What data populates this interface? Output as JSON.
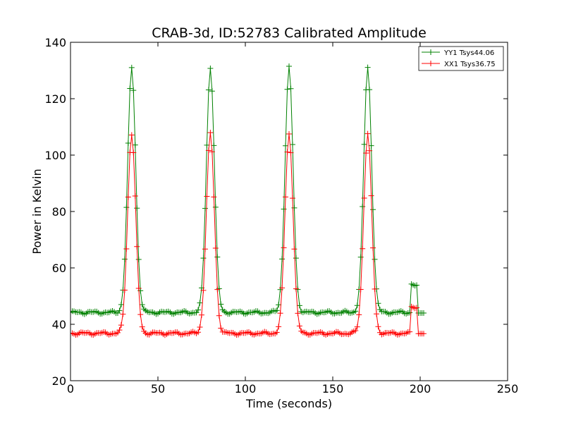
{
  "chart_data": {
    "type": "line",
    "title": "CRAB-3d, ID:52783 Calibrated Amplitude",
    "xlabel": "Time (seconds)",
    "ylabel": "Power in Kelvin",
    "xlim": [
      0,
      250
    ],
    "ylim": [
      20,
      140
    ],
    "xticks": [
      "0",
      "50",
      "100",
      "150",
      "200",
      "250"
    ],
    "yticks": [
      "20",
      "40",
      "60",
      "80",
      "100",
      "120",
      "140"
    ],
    "grid": false,
    "legend_position": "top-right",
    "marker": "+",
    "series": [
      {
        "name": "YY1 Tsys44.06",
        "color": "#008000",
        "baseline": 44.2,
        "peak": 131,
        "tail_level": 54,
        "tail_after": 44
      },
      {
        "name": "XX1 Tsys36.75",
        "color": "#ff0000",
        "baseline": 36.8,
        "peak": 107.5,
        "tail_level": 46,
        "tail_after": 36.7
      }
    ],
    "peak_times": [
      35,
      80,
      125,
      170
    ],
    "peak_width": 2.3,
    "sample_interval": 1.0,
    "x_end": 202
  }
}
